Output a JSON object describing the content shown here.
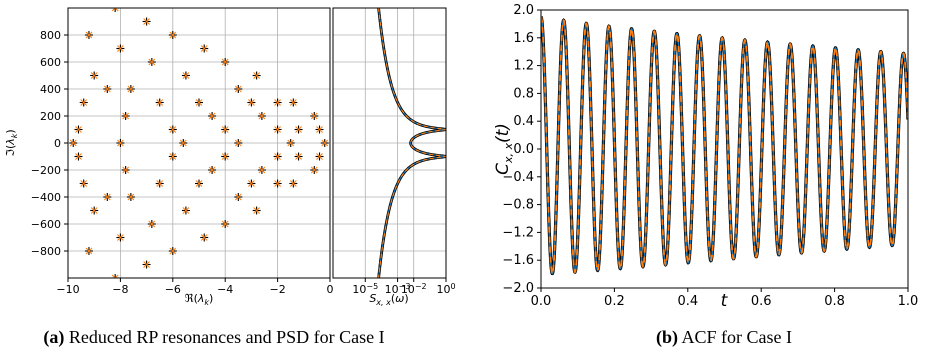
{
  "colors": {
    "black": "#000000",
    "orange": "#ff7f0e",
    "blue": "#1f77b4",
    "grid": "#b0b0b0"
  },
  "captions": {
    "a_label": "(a)",
    "a_text": " Reduced RP resonances and PSD for Case I",
    "b_label": "(b)",
    "b_text": " ACF for Case I"
  },
  "chart_data": [
    {
      "type": "scatter",
      "xlabel": "ℜ(λ_k)",
      "ylabel": "ℑ(λ_k)",
      "xlim": [
        -10,
        0
      ],
      "ylim": [
        -1000,
        1000
      ],
      "xticks": [
        "−10",
        "−8",
        "−6",
        "−4",
        "−2",
        "0"
      ],
      "yticks": [
        "−800",
        "−600",
        "−400",
        "−200",
        "0",
        "200",
        "400",
        "600",
        "800"
      ],
      "grid": true,
      "series": [
        {
          "marker": "plus",
          "color": "#000000",
          "points": [
            [
              -9.8,
              0
            ],
            [
              -9.6,
              100
            ],
            [
              -9.6,
              -100
            ],
            [
              -9.4,
              300
            ],
            [
              -9.4,
              -300
            ],
            [
              -9.2,
              800
            ],
            [
              -9.2,
              -800
            ],
            [
              -9.0,
              500
            ],
            [
              -9.0,
              -500
            ],
            [
              -8.5,
              400
            ],
            [
              -8.5,
              -400
            ],
            [
              -8.2,
              1000
            ],
            [
              -8.2,
              -1000
            ],
            [
              -8.0,
              700
            ],
            [
              -8.0,
              -700
            ],
            [
              -7.8,
              200
            ],
            [
              -7.8,
              -200
            ],
            [
              -8.0,
              0
            ],
            [
              -7.6,
              400
            ],
            [
              -7.6,
              -400
            ],
            [
              -7.0,
              900
            ],
            [
              -7.0,
              -900
            ],
            [
              -6.8,
              600
            ],
            [
              -6.8,
              -600
            ],
            [
              -6.5,
              300
            ],
            [
              -6.5,
              -300
            ],
            [
              -6.0,
              800
            ],
            [
              -6.0,
              -800
            ],
            [
              -6.0,
              100
            ],
            [
              -6.0,
              -100
            ],
            [
              -5.6,
              0
            ],
            [
              -5.5,
              500
            ],
            [
              -5.5,
              -500
            ],
            [
              -5.0,
              300
            ],
            [
              -5.0,
              -300
            ],
            [
              -4.8,
              700
            ],
            [
              -4.8,
              -700
            ],
            [
              -4.5,
              200
            ],
            [
              -4.5,
              -200
            ],
            [
              -4.0,
              100
            ],
            [
              -4.0,
              -100
            ],
            [
              -4.0,
              600
            ],
            [
              -4.0,
              -600
            ],
            [
              -3.5,
              0
            ],
            [
              -3.5,
              400
            ],
            [
              -3.5,
              -400
            ],
            [
              -3.0,
              300
            ],
            [
              -3.0,
              -300
            ],
            [
              -2.8,
              500
            ],
            [
              -2.8,
              -500
            ],
            [
              -2.6,
              200
            ],
            [
              -2.6,
              -200
            ],
            [
              -2.0,
              100
            ],
            [
              -2.0,
              -100
            ],
            [
              -2.0,
              300
            ],
            [
              -2.0,
              -300
            ],
            [
              -1.5,
              0
            ],
            [
              -1.4,
              300
            ],
            [
              -1.4,
              -300
            ],
            [
              -1.2,
              100
            ],
            [
              -1.2,
              -100
            ],
            [
              -0.6,
              200
            ],
            [
              -0.6,
              -200
            ],
            [
              -0.4,
              100
            ],
            [
              -0.4,
              -100
            ],
            [
              -0.2,
              0
            ]
          ]
        },
        {
          "marker": "x",
          "color": "#ff7f0e",
          "points": [
            [
              -9.8,
              0
            ],
            [
              -9.6,
              100
            ],
            [
              -9.6,
              -100
            ],
            [
              -9.4,
              300
            ],
            [
              -9.4,
              -300
            ],
            [
              -9.2,
              800
            ],
            [
              -9.2,
              -800
            ],
            [
              -9.0,
              500
            ],
            [
              -9.0,
              -500
            ],
            [
              -8.5,
              400
            ],
            [
              -8.5,
              -400
            ],
            [
              -8.2,
              1000
            ],
            [
              -8.2,
              -1000
            ],
            [
              -8.0,
              700
            ],
            [
              -8.0,
              -700
            ],
            [
              -7.8,
              200
            ],
            [
              -7.8,
              -200
            ],
            [
              -8.0,
              0
            ],
            [
              -7.6,
              400
            ],
            [
              -7.6,
              -400
            ],
            [
              -7.0,
              900
            ],
            [
              -7.0,
              -900
            ],
            [
              -6.8,
              600
            ],
            [
              -6.8,
              -600
            ],
            [
              -6.5,
              300
            ],
            [
              -6.5,
              -300
            ],
            [
              -6.0,
              800
            ],
            [
              -6.0,
              -800
            ],
            [
              -6.0,
              100
            ],
            [
              -6.0,
              -100
            ],
            [
              -5.6,
              0
            ],
            [
              -5.5,
              500
            ],
            [
              -5.5,
              -500
            ],
            [
              -5.0,
              300
            ],
            [
              -5.0,
              -300
            ],
            [
              -4.8,
              700
            ],
            [
              -4.8,
              -700
            ],
            [
              -4.5,
              200
            ],
            [
              -4.5,
              -200
            ],
            [
              -4.0,
              100
            ],
            [
              -4.0,
              -100
            ],
            [
              -4.0,
              600
            ],
            [
              -4.0,
              -600
            ],
            [
              -3.5,
              0
            ],
            [
              -3.5,
              400
            ],
            [
              -3.5,
              -400
            ],
            [
              -3.0,
              300
            ],
            [
              -3.0,
              -300
            ],
            [
              -2.8,
              500
            ],
            [
              -2.8,
              -500
            ],
            [
              -2.6,
              200
            ],
            [
              -2.6,
              -200
            ],
            [
              -2.0,
              100
            ],
            [
              -2.0,
              -100
            ],
            [
              -2.0,
              300
            ],
            [
              -2.0,
              -300
            ],
            [
              -1.5,
              0
            ],
            [
              -1.4,
              300
            ],
            [
              -1.4,
              -300
            ],
            [
              -1.2,
              100
            ],
            [
              -1.2,
              -100
            ],
            [
              -0.6,
              200
            ],
            [
              -0.6,
              -200
            ],
            [
              -0.4,
              100
            ],
            [
              -0.4,
              -100
            ],
            [
              -0.2,
              0
            ]
          ]
        }
      ]
    },
    {
      "type": "line",
      "xlabel": "S_{x,x}(ω)",
      "xscale": "log",
      "xlim": [
        1e-07,
        1
      ],
      "ylim": [
        -1000,
        1000
      ],
      "xticks": [
        "10^−5",
        "10^−3",
        "10^−2",
        "10^0"
      ],
      "x_tick_values": [
        1e-05,
        0.001,
        0.01,
        1
      ],
      "grid": true,
      "peak_frequencies": [
        100,
        -100
      ],
      "peak_value": 0.9,
      "series": [
        {
          "style": "solid",
          "color": "#000000",
          "width": 2.8
        },
        {
          "style": "solid",
          "color": "#1f77b4",
          "width": 1.2
        },
        {
          "style": "dashed",
          "color": "#ff7f0e",
          "width": 1.2
        }
      ]
    },
    {
      "type": "line",
      "xlabel": "t",
      "ylabel": "C_{x,x}(t)",
      "xlim": [
        0,
        1
      ],
      "ylim": [
        -2,
        2
      ],
      "xticks": [
        "0.0",
        "0.2",
        "0.4",
        "0.6",
        "0.8",
        "1.0"
      ],
      "yticks": [
        "−2.0",
        "−1.6",
        "−1.2",
        "−0.8",
        "−0.4",
        "0.0",
        "0.4",
        "0.8",
        "1.2",
        "1.6",
        "2.0"
      ],
      "frequency_hz": 16.2,
      "amplitude": 1.85,
      "decay": 0.3,
      "grid": false,
      "series": [
        {
          "style": "solid",
          "color": "#000000",
          "width": 3.2
        },
        {
          "style": "solid",
          "color": "#1f77b4",
          "width": 1.6
        },
        {
          "style": "dashed",
          "color": "#ff7f0e",
          "width": 1.8
        }
      ]
    }
  ]
}
